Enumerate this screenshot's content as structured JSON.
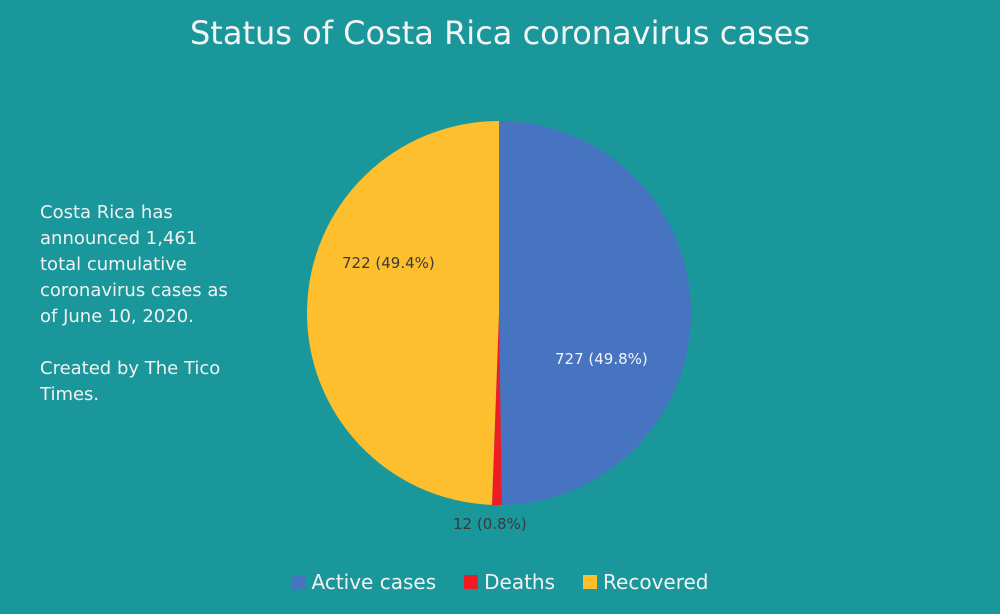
{
  "title": "Status of Costa Rica coronavirus cases",
  "note": {
    "paragraph1": "Costa Rica has announced 1,461 total cumulative coronavirus cases as of June 10, 2020.",
    "paragraph2": "Created by The Tico Times."
  },
  "labels": {
    "active": "727 (49.8%)",
    "deaths": "12 (0.8%)",
    "recovered": "722 (49.4%)"
  },
  "legend": {
    "active": "Active cases",
    "deaths": "Deaths",
    "recovered": "Recovered"
  },
  "colors": {
    "background": "#1a979b",
    "active": "#4674c1",
    "deaths": "#ee1c25",
    "recovered": "#fdbf2d"
  },
  "chart_data": {
    "type": "pie",
    "title": "Status of Costa Rica coronavirus cases",
    "categories": [
      "Active cases",
      "Deaths",
      "Recovered"
    ],
    "values": [
      727,
      12,
      722
    ],
    "percentages": [
      49.8,
      0.8,
      49.4
    ],
    "data_labels": [
      "727 (49.8%)",
      "12 (0.8%)",
      "722 (49.4%)"
    ],
    "total": 1461,
    "legend_position": "bottom",
    "annotation": "Costa Rica has announced 1,461 total cumulative coronavirus cases as of June 10, 2020. Created by The Tico Times."
  }
}
